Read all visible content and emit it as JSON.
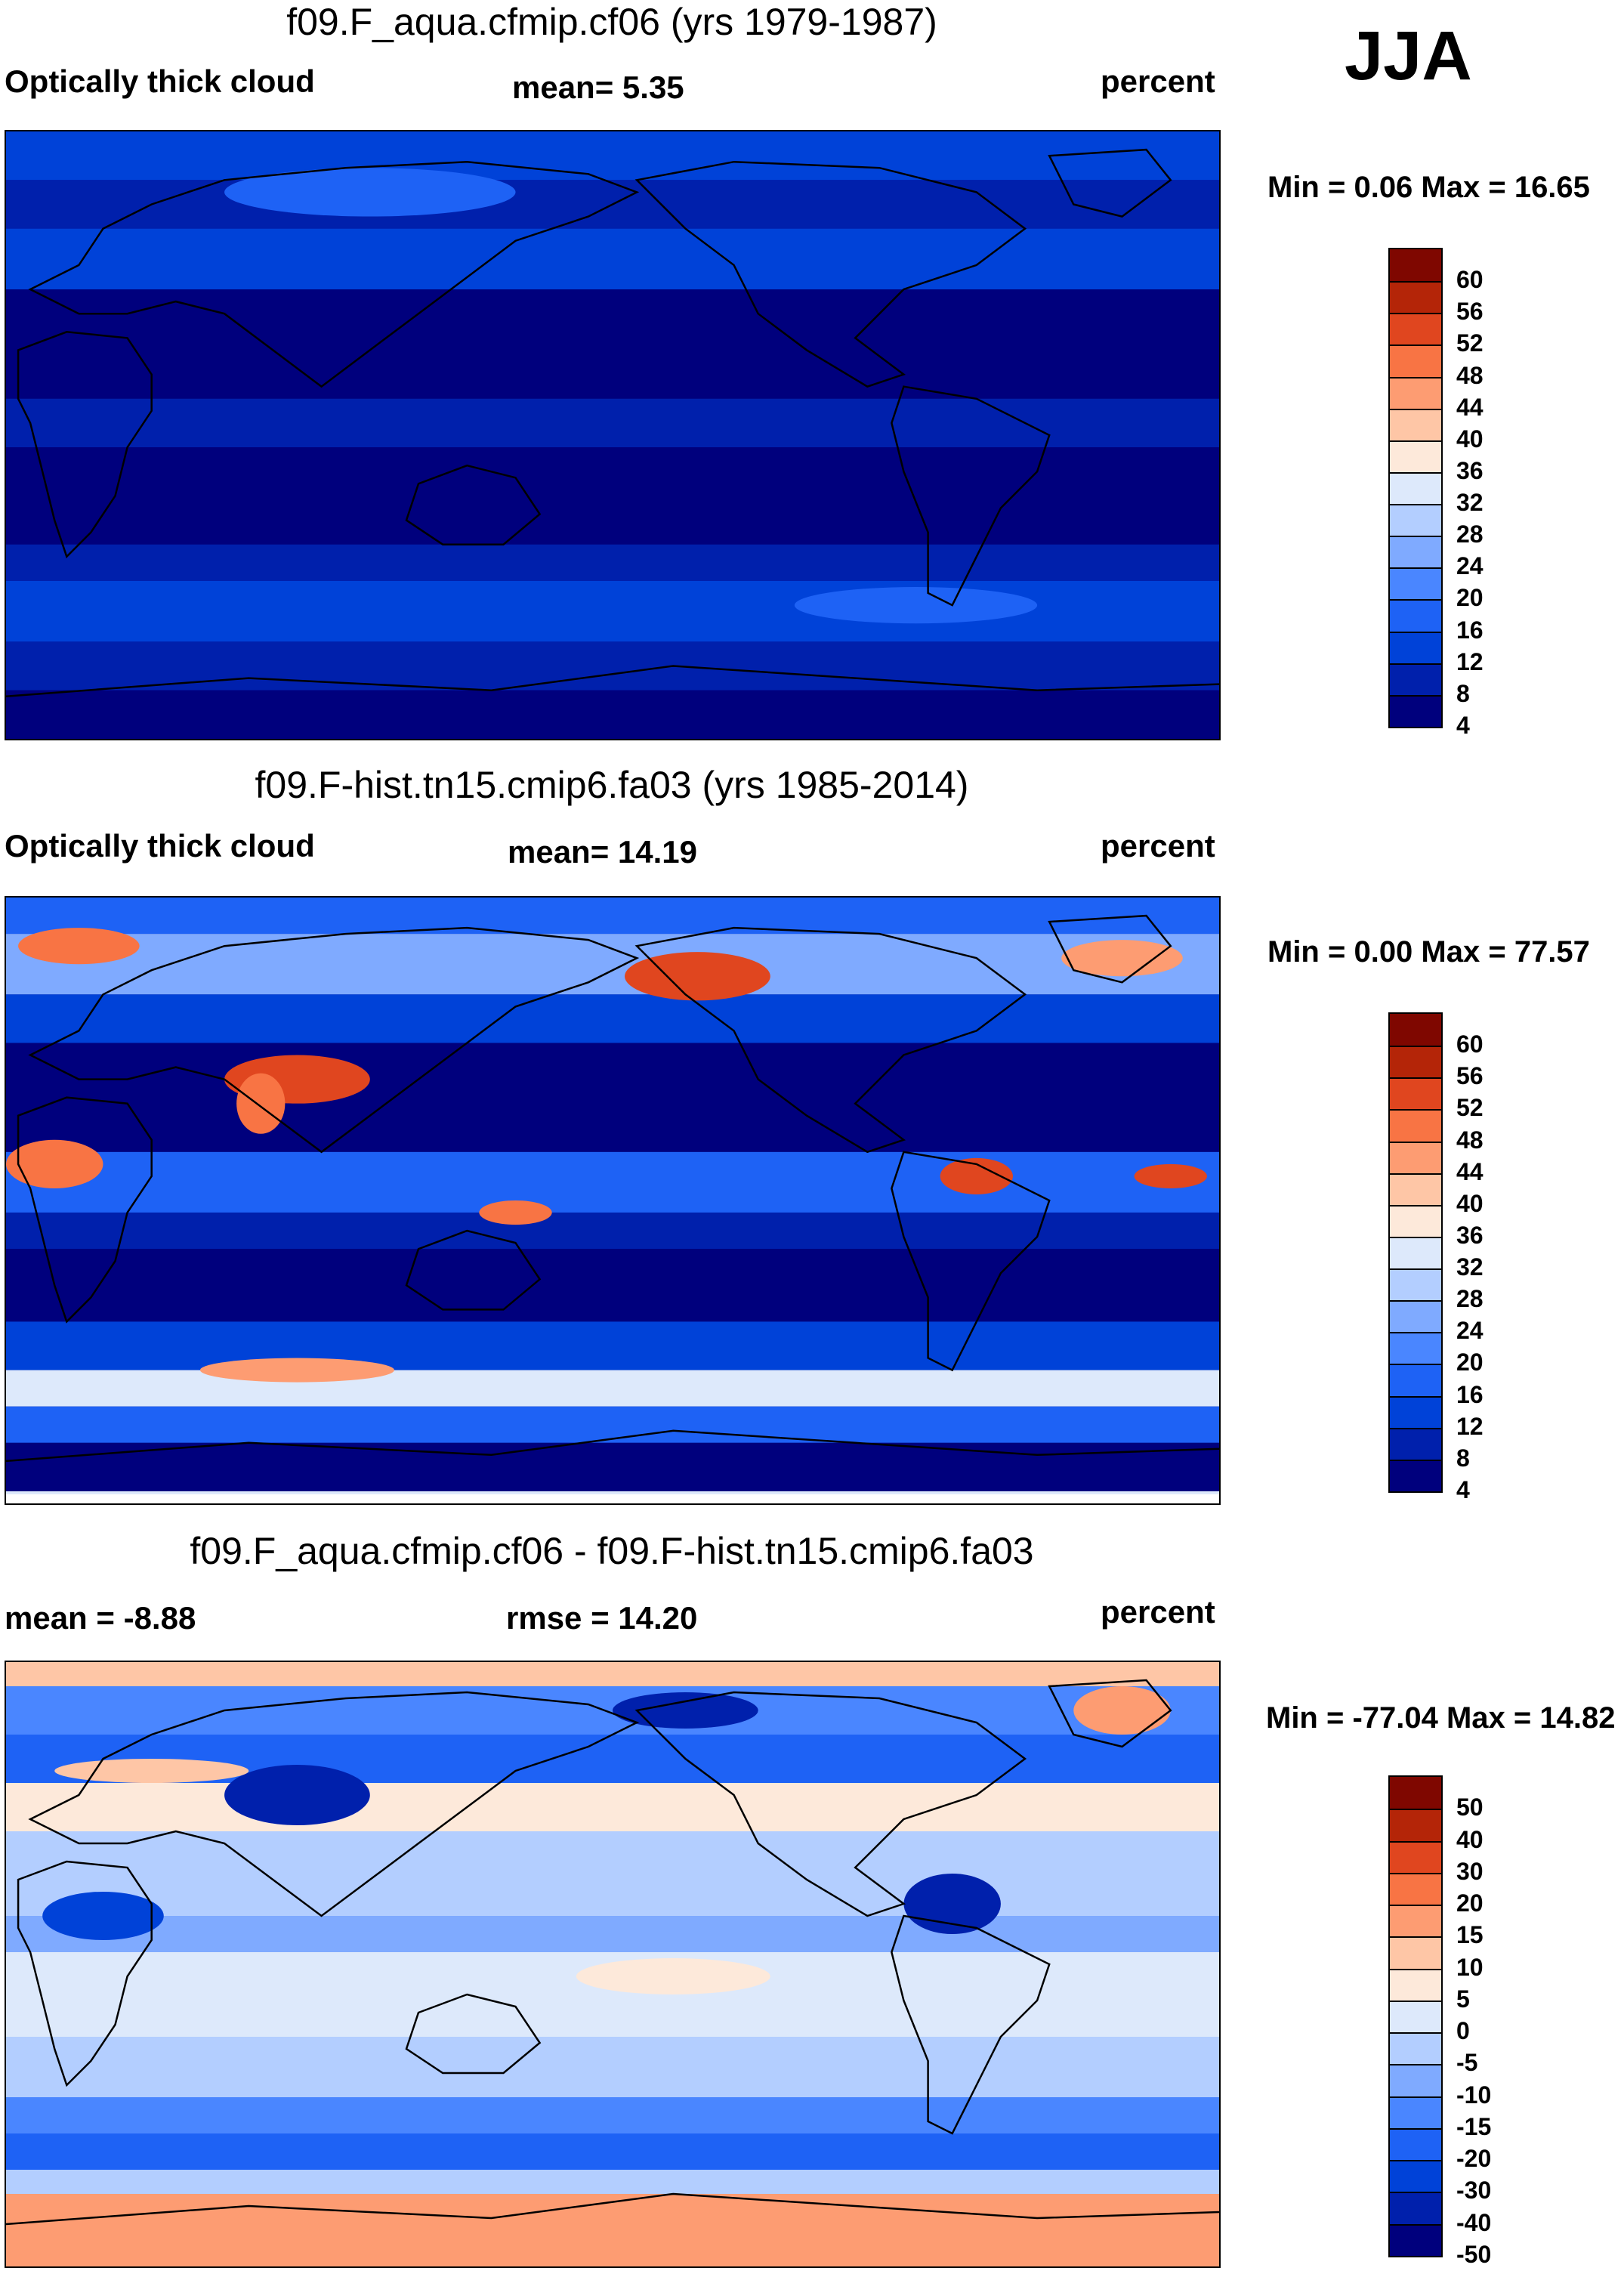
{
  "season": "JJA",
  "colors": {
    "levels12": [
      "#00007d",
      "#0020ac",
      "#0042d8",
      "#1e62f5",
      "#4a86ff",
      "#7faaff",
      "#b3ceff",
      "#dde9fb",
      "#fde9da",
      "#fec6a6",
      "#fd9c72",
      "#f87444",
      "#e0461f",
      "#b42508",
      "#7f0700"
    ],
    "continent_outline": "#000000"
  },
  "panels": [
    {
      "title": "f09.F_aqua.cfmip.cf06 (yrs 1979-1987)",
      "left_label": "Optically thick cloud",
      "center_label": "mean=   5.35",
      "right_label": "percent",
      "minmax": "Min =    0.06 Max =  16.65",
      "colorbar_ticks": [
        "60",
        "56",
        "52",
        "48",
        "44",
        "40",
        "36",
        "32",
        "28",
        "24",
        "20",
        "16",
        "12",
        "8",
        "4"
      ],
      "field": "uniform_low"
    },
    {
      "title": "f09.F-hist.tn15.cmip6.fa03 (yrs 1985-2014)",
      "left_label": "Optically thick cloud",
      "center_label": "mean=  14.19",
      "right_label": "percent",
      "minmax": "Min =    0.00 Max =  77.57",
      "colorbar_ticks": [
        "60",
        "56",
        "52",
        "48",
        "44",
        "40",
        "36",
        "32",
        "28",
        "24",
        "20",
        "16",
        "12",
        "8",
        "4"
      ],
      "field": "observed"
    },
    {
      "title": "f09.F_aqua.cfmip.cf06 - f09.F-hist.tn15.cmip6.fa03",
      "left_label": "mean =  -8.88",
      "center_label": "rmse =  14.20",
      "right_label": "percent",
      "minmax": "Min = -77.04 Max =  14.82",
      "colorbar_ticks": [
        "50",
        "40",
        "30",
        "20",
        "15",
        "10",
        "5",
        "0",
        "-5",
        "-10",
        "-15",
        "-20",
        "-30",
        "-40",
        "-50"
      ],
      "field": "difference"
    }
  ]
}
